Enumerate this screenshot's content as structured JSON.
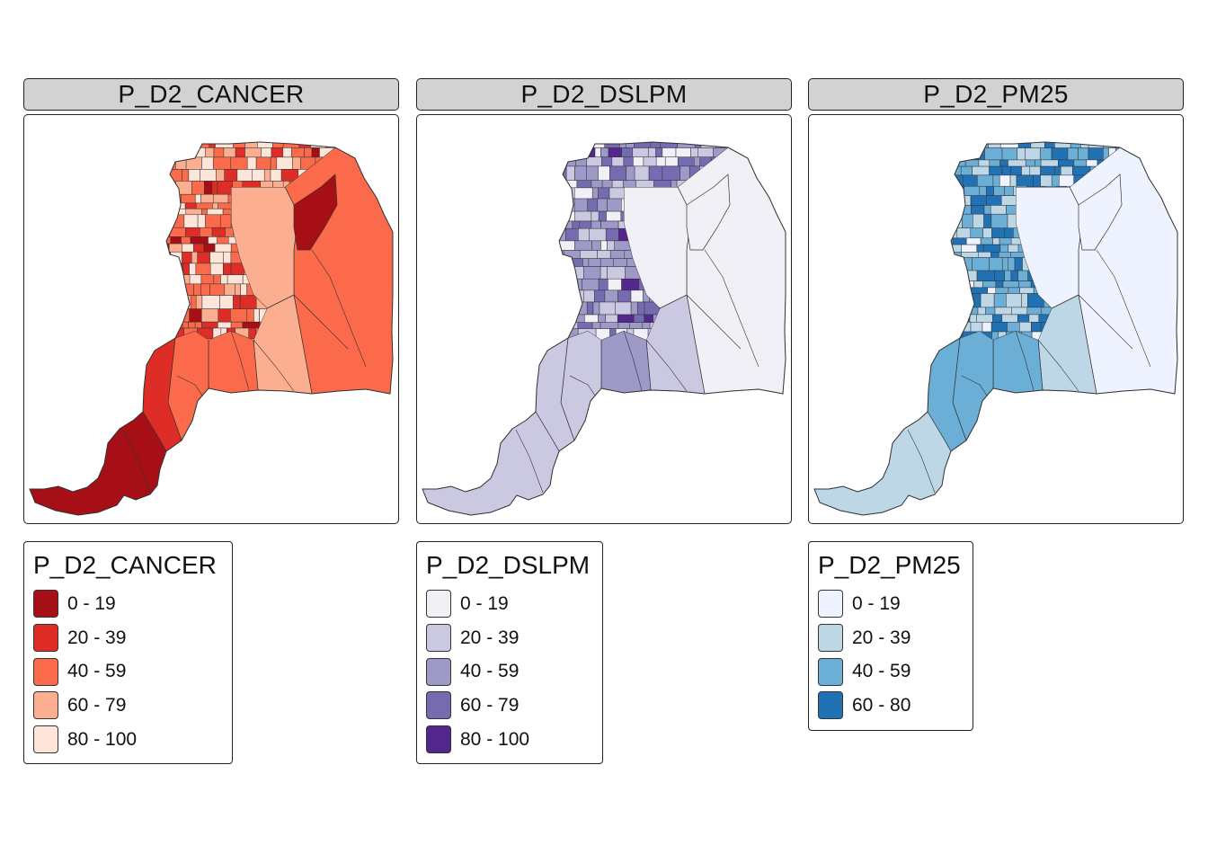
{
  "panels": [
    {
      "title": "P_D2_CANCER",
      "legend": {
        "title": "P_D2_CANCER",
        "classes": [
          {
            "label": "0 - 19",
            "color": "#a50f15"
          },
          {
            "label": "20 - 39",
            "color": "#de2d26"
          },
          {
            "label": "40 - 59",
            "color": "#fb6a4a"
          },
          {
            "label": "60 - 79",
            "color": "#fcae91"
          },
          {
            "label": "80 - 100",
            "color": "#fee5d9"
          }
        ]
      }
    },
    {
      "title": "P_D2_DSLPM",
      "legend": {
        "title": "P_D2_DSLPM",
        "classes": [
          {
            "label": "0 - 19",
            "color": "#f2f0f7"
          },
          {
            "label": "20 - 39",
            "color": "#cbc9e2"
          },
          {
            "label": "40 - 59",
            "color": "#9e9ac8"
          },
          {
            "label": "60 - 79",
            "color": "#756bb1"
          },
          {
            "label": "80 - 100",
            "color": "#54278f"
          }
        ]
      }
    },
    {
      "title": "P_D2_PM25",
      "legend": {
        "title": "P_D2_PM25",
        "classes": [
          {
            "label": "0 - 19",
            "color": "#eff3ff"
          },
          {
            "label": "20 - 39",
            "color": "#bdd7e7"
          },
          {
            "label": "40 - 59",
            "color": "#6baed6"
          },
          {
            "label": "60 - 80",
            "color": "#2171b5"
          }
        ]
      }
    }
  ]
}
